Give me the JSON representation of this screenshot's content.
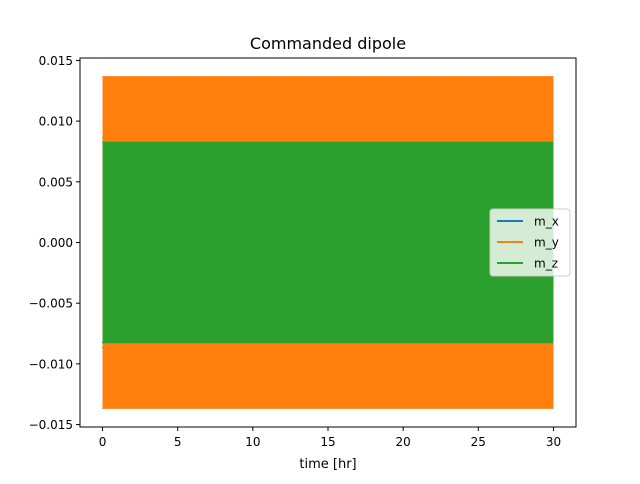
{
  "chart_data": {
    "type": "line",
    "title": "Commanded dipole",
    "xlabel": "time [hr]",
    "ylabel": "",
    "xlim": [
      -1.5,
      31.5
    ],
    "ylim": [
      -0.0152,
      0.0152
    ],
    "x_ticks": [
      0,
      5,
      10,
      15,
      20,
      25,
      30
    ],
    "x_tick_labels": [
      "0",
      "5",
      "10",
      "15",
      "20",
      "25",
      "30"
    ],
    "y_ticks": [
      -0.015,
      -0.01,
      -0.005,
      0.0,
      0.005,
      0.01,
      0.015
    ],
    "y_tick_labels": [
      "−0.015",
      "−0.010",
      "−0.005",
      "0.000",
      "0.005",
      "0.010",
      "0.015"
    ],
    "grid": false,
    "legend_position": "center-right",
    "series": [
      {
        "name": "m_x",
        "color": "#1f77b4",
        "x_range": [
          0,
          30
        ],
        "envelope": [
          -0.0087,
          0.0087
        ]
      },
      {
        "name": "m_y",
        "color": "#ff7f0e",
        "x_range": [
          0,
          30
        ],
        "envelope": [
          -0.0137,
          0.0137
        ]
      },
      {
        "name": "m_z",
        "color": "#2ca02c",
        "x_range": [
          0,
          30
        ],
        "envelope": [
          -0.0083,
          0.0083
        ]
      }
    ]
  }
}
